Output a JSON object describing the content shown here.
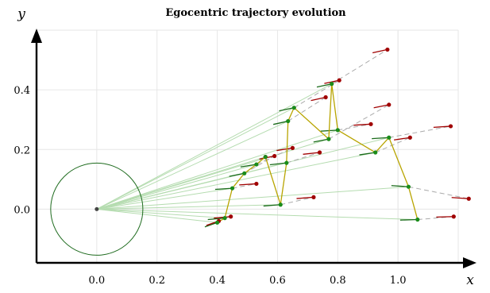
{
  "chart_data": {
    "type": "scatter",
    "title": "Egocentric trajectory evolution",
    "xlabel": "x",
    "ylabel": "y",
    "xlim": [
      -0.2,
      1.2
    ],
    "ylim": [
      -0.18,
      0.6
    ],
    "xticks": [
      0.0,
      0.2,
      0.4,
      0.6,
      0.8,
      1.0
    ],
    "xtick_labels": [
      "0.0",
      "0.2",
      "0.4",
      "0.6",
      "0.8",
      "1.0"
    ],
    "yticks": [
      0.0,
      0.2,
      0.4
    ],
    "ytick_labels": [
      "0.0",
      "0.2",
      "0.4"
    ],
    "grid": true,
    "origin": [
      0.0,
      0.0
    ],
    "circle_radius": 0.153,
    "trajectory": [
      [
        0.4,
        -0.045
      ],
      [
        0.425,
        -0.03
      ],
      [
        0.45,
        0.07
      ],
      [
        0.49,
        0.12
      ],
      [
        0.53,
        0.15
      ],
      [
        0.56,
        0.175
      ],
      [
        0.61,
        0.015
      ],
      [
        0.63,
        0.155
      ],
      [
        0.635,
        0.295
      ],
      [
        0.655,
        0.34
      ],
      [
        0.77,
        0.235
      ],
      [
        0.78,
        0.42
      ],
      [
        0.8,
        0.265
      ],
      [
        0.925,
        0.19
      ],
      [
        0.97,
        0.24
      ],
      [
        1.035,
        0.075
      ],
      [
        1.065,
        -0.035
      ]
    ],
    "predictions": [
      [
        0.405,
        -0.04
      ],
      [
        0.445,
        -0.025
      ],
      [
        0.53,
        0.085
      ],
      [
        0.59,
        0.178
      ],
      [
        0.65,
        0.205
      ],
      [
        0.56,
        0.175
      ],
      [
        0.72,
        0.04
      ],
      [
        0.74,
        0.19
      ],
      [
        0.76,
        0.375
      ],
      [
        0.805,
        0.432
      ],
      [
        0.97,
        0.35
      ],
      [
        0.965,
        0.535
      ],
      [
        0.91,
        0.285
      ],
      [
        1.04,
        0.24
      ],
      [
        1.175,
        0.278
      ],
      [
        1.235,
        0.035
      ],
      [
        1.185,
        -0.025
      ]
    ],
    "colors": {
      "trajectory_line": "#b8a400",
      "trajectory_points": "#1a8c1a",
      "prediction_points": "#a00000",
      "connector_lines": "#aaaaaa",
      "origin_rays": "#b5dcb0",
      "circle": "#1e6b1e"
    }
  }
}
